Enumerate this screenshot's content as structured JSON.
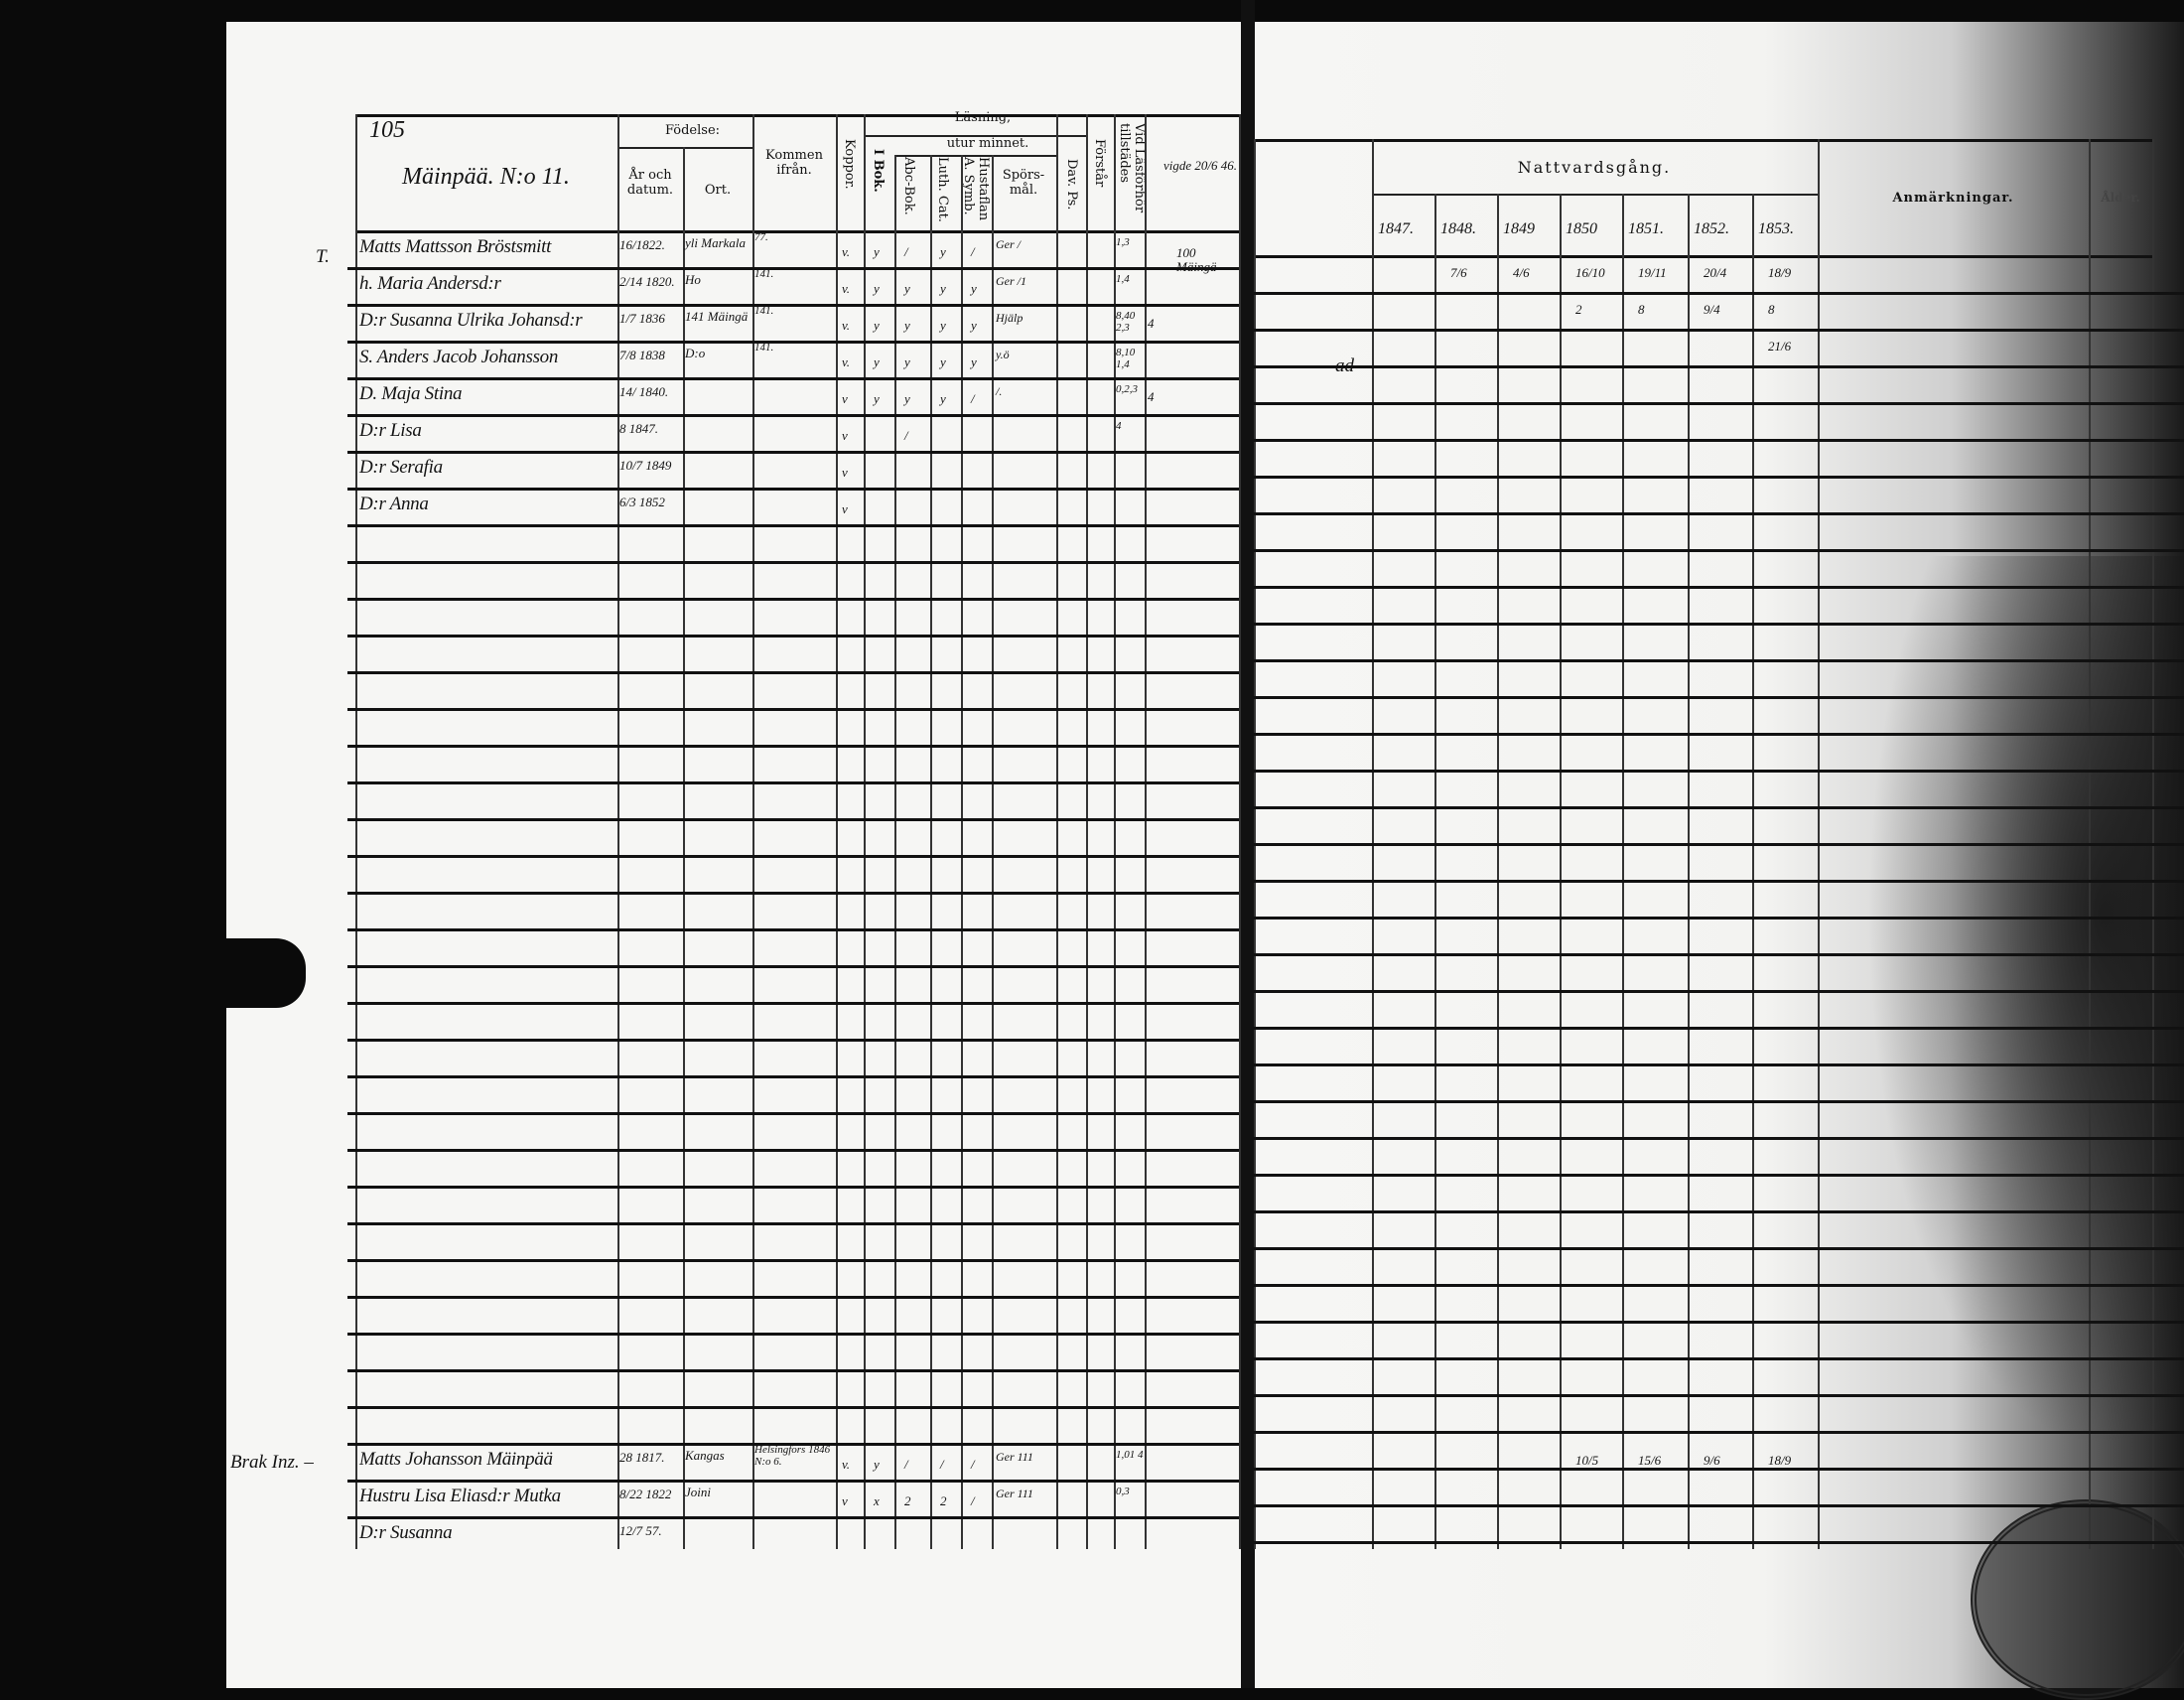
{
  "left_page": {
    "page_number": "105",
    "village": "Mäinpää. N:o 11.",
    "margin_mark": "T.",
    "headers": {
      "fodelse": "Födelse:",
      "ar_och_datum": "År och datum.",
      "ort": "Ort.",
      "kommen_ifran": "Kommen ifrån.",
      "koppor": "Koppor.",
      "lasning": "Läsning,",
      "i_bok": "I Bok.",
      "utur_minnet": "utur minnet.",
      "abc_bok": "Abc-Bok.",
      "luth_cat": "Luth. Cat.",
      "hustaflan": "Hustaflan A. Symb.",
      "sporsmal": "Spörs-mål.",
      "dav_ps": "Dav. Ps.",
      "forstar": "Förstår",
      "vid_lasforhor": "Vid Läsförhör tillstädes"
    },
    "marriage_note": "vigde 20/6 46.",
    "household_note": "100 Mäingä",
    "rows": [
      {
        "name": "Matts Mattsson Bröstsmitt",
        "date": "16/1822.",
        "ort": "yli Markala",
        "from": "77.",
        "koppor": "v.",
        "marks": [
          "y",
          "/",
          "y",
          "/"
        ],
        "sporsmal": "Ger /",
        "tillstades": "1,3"
      },
      {
        "name": "h. Maria Andersd:r",
        "date": "2/14 1820.",
        "ort": "Ho",
        "from": "141.",
        "koppor": "v.",
        "marks": [
          "y",
          "y",
          "y",
          "y"
        ],
        "sporsmal": "Ger /1",
        "tillstades": "1,4"
      },
      {
        "name": "D:r Susanna Ulrika Johansd:r",
        "date": "1/7 1836",
        "ort": "141 Mäingä",
        "from": "141.",
        "koppor": "v.",
        "marks": [
          "y",
          "y",
          "y",
          "y"
        ],
        "sporsmal": "Hjälp",
        "tillstades": "8,40 2,3",
        "extra": "4"
      },
      {
        "name": "S. Anders Jacob Johansson",
        "date": "7/8 1838",
        "ort": "D:o",
        "from": "141.",
        "koppor": "v.",
        "marks": [
          "y",
          "y",
          "y",
          "y"
        ],
        "sporsmal": "y.ö",
        "tillstades": "8,10 1,4"
      },
      {
        "name": "D. Maja Stina",
        "date": "14/ 1840.",
        "ort": "",
        "from": "",
        "koppor": "v",
        "marks": [
          "y",
          "y",
          "y",
          "/"
        ],
        "sporsmal": "/.",
        "tillstades": "0,2,3",
        "extra": "4"
      },
      {
        "name": "D:r Lisa",
        "date": "8 1847.",
        "ort": "",
        "from": "",
        "koppor": "v",
        "marks": [
          "",
          "/",
          "",
          ""
        ],
        "sporsmal": "",
        "tillstades": "4"
      },
      {
        "name": "D:r Serafia",
        "date": "10/7 1849",
        "ort": "",
        "from": "",
        "koppor": "v",
        "marks": [
          "",
          "",
          "",
          ""
        ],
        "sporsmal": "",
        "tillstades": ""
      },
      {
        "name": "D:r Anna",
        "date": "6/3 1852",
        "ort": "",
        "from": "",
        "koppor": "v",
        "marks": [
          "",
          "",
          "",
          ""
        ],
        "sporsmal": "",
        "tillstades": ""
      }
    ],
    "bottom_label": "Brak Inz. –",
    "bottom_rows": [
      {
        "name": "Matts Johansson Mäinpää",
        "date": "28 1817.",
        "ort": "Kangas",
        "from": "Helsingfors 1846 N:o 6.",
        "koppor": "v.",
        "marks": [
          "y",
          "/",
          "/",
          "/"
        ],
        "sporsmal": "Ger 111",
        "tillstades": "1,01 4"
      },
      {
        "name": "Hustru Lisa Eliasd:r Mutka",
        "date": "8/22 1822",
        "ort": "Joini",
        "from": "",
        "koppor": "v",
        "marks": [
          "x",
          "2",
          "2",
          "/"
        ],
        "sporsmal": "Ger 111",
        "tillstades": "0,3"
      },
      {
        "name": "D:r Susanna",
        "date": "12/7 57.",
        "ort": "",
        "from": "",
        "koppor": "",
        "marks": [
          "",
          "",
          "",
          ""
        ],
        "sporsmal": "",
        "tillstades": ""
      }
    ]
  },
  "right_page": {
    "nattvardsgang": "Nattvardsgång.",
    "years": [
      "1847.",
      "1848.",
      "1849",
      "1850",
      "1851.",
      "1852.",
      "1853."
    ],
    "anmarkningar": "Anmärkningar.",
    "alder": "Ålder.",
    "rows": [
      [
        "",
        "7/6",
        "4/6",
        "16/10",
        "19/11",
        "20/4",
        "18/9"
      ],
      [
        "",
        "",
        "",
        "2",
        "8",
        "9/4",
        "8"
      ],
      [
        "",
        "",
        "",
        "",
        "",
        "",
        "21/6"
      ]
    ],
    "row3_margin": "ad",
    "bottom_rows": [
      [
        "",
        "",
        "",
        "10/5",
        "15/6",
        "9/6",
        "18/9"
      ]
    ]
  }
}
